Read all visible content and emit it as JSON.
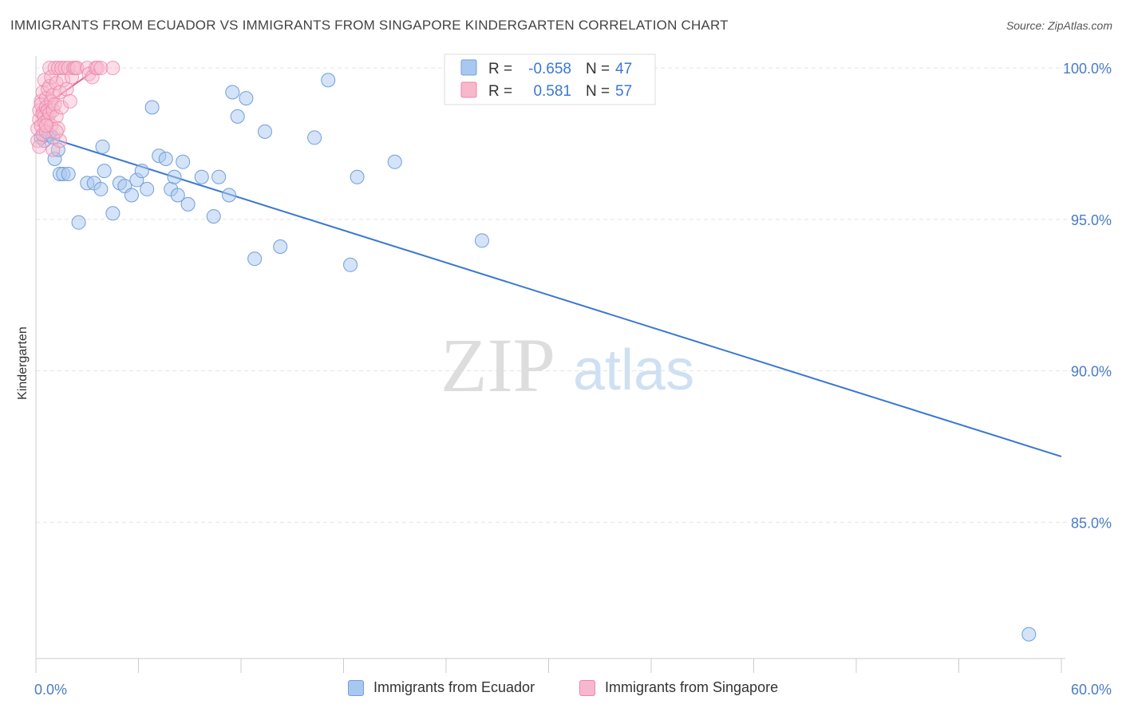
{
  "title": "IMMIGRANTS FROM ECUADOR VS IMMIGRANTS FROM SINGAPORE KINDERGARTEN CORRELATION CHART",
  "source": "Source: ZipAtlas.com",
  "watermark": {
    "zip": "ZIP",
    "atlas": "atlas"
  },
  "colors": {
    "blue_fill": "#a9c8ef",
    "blue_stroke": "#6f9fdc",
    "blue_line": "#3a78d0",
    "pink_fill": "#f7b8cc",
    "pink_stroke": "#ee85a8",
    "pink_line": "#e8638f",
    "tick_color": "#4a7cc7",
    "grid": "#e3e3e3"
  },
  "legend_box": {
    "rows": [
      {
        "r_label": "R =",
        "r_value": "-0.658",
        "n_label": "N =",
        "n_value": "47"
      },
      {
        "r_label": "R =",
        "r_value": "0.581",
        "n_label": "N =",
        "n_value": "57"
      }
    ]
  },
  "chart_data": {
    "type": "scatter",
    "title": "IMMIGRANTS FROM ECUADOR VS IMMIGRANTS FROM SINGAPORE KINDERGARTEN CORRELATION CHART",
    "xlabel": "",
    "ylabel": "Kindergarten",
    "x_tick_labels": [
      "0.0%",
      "60.0%"
    ],
    "y_tick_labels": [
      "100.0%",
      "95.0%",
      "90.0%",
      "85.0%"
    ],
    "y_ticks": [
      100.0,
      95.0,
      90.0,
      85.0
    ],
    "xlim": [
      0,
      60
    ],
    "ylim": [
      80.5,
      100.4
    ],
    "grid": true,
    "legend_placement": "bottom",
    "series": [
      {
        "name": "Immigrants from Ecuador",
        "color": "#a9c8ef",
        "trend": {
          "x": [
            0.0,
            60.0
          ],
          "y": [
            97.84,
            87.17
          ]
        },
        "points": [
          [
            0.5,
            97.6
          ],
          [
            1.1,
            97.0
          ],
          [
            1.3,
            97.3
          ],
          [
            1.4,
            96.5
          ],
          [
            1.6,
            96.5
          ],
          [
            1.9,
            96.5
          ],
          [
            2.5,
            94.9
          ],
          [
            3.0,
            96.2
          ],
          [
            3.4,
            96.2
          ],
          [
            3.8,
            96.0
          ],
          [
            3.9,
            97.4
          ],
          [
            4.0,
            96.6
          ],
          [
            4.5,
            95.2
          ],
          [
            4.9,
            96.2
          ],
          [
            5.2,
            96.1
          ],
          [
            5.6,
            95.8
          ],
          [
            5.9,
            96.3
          ],
          [
            6.2,
            96.6
          ],
          [
            6.5,
            96.0
          ],
          [
            6.8,
            98.7
          ],
          [
            7.2,
            97.1
          ],
          [
            7.6,
            97.0
          ],
          [
            7.9,
            96.0
          ],
          [
            8.1,
            96.4
          ],
          [
            8.3,
            95.8
          ],
          [
            8.6,
            96.9
          ],
          [
            8.9,
            95.5
          ],
          [
            9.7,
            96.4
          ],
          [
            10.4,
            95.1
          ],
          [
            10.7,
            96.4
          ],
          [
            11.3,
            95.8
          ],
          [
            11.5,
            99.2
          ],
          [
            11.8,
            98.4
          ],
          [
            12.3,
            99.0
          ],
          [
            12.8,
            93.7
          ],
          [
            13.4,
            97.9
          ],
          [
            14.3,
            94.1
          ],
          [
            16.3,
            97.7
          ],
          [
            17.1,
            99.6
          ],
          [
            18.4,
            93.5
          ],
          [
            18.8,
            96.4
          ],
          [
            21.0,
            96.9
          ],
          [
            26.1,
            94.3
          ],
          [
            58.1,
            81.3
          ],
          [
            0.3,
            97.7
          ],
          [
            0.8,
            97.8
          ],
          [
            1.0,
            97.7
          ]
        ]
      },
      {
        "name": "Immigrants from Singapore",
        "color": "#f7b8cc",
        "trend": {
          "x": [
            0.0,
            3.5
          ],
          "y": [
            98.55,
            99.95
          ]
        },
        "points": [
          [
            0.1,
            97.6
          ],
          [
            0.1,
            98.0
          ],
          [
            0.2,
            98.3
          ],
          [
            0.2,
            98.6
          ],
          [
            0.2,
            97.4
          ],
          [
            0.3,
            98.9
          ],
          [
            0.3,
            98.1
          ],
          [
            0.3,
            98.8
          ],
          [
            0.4,
            99.2
          ],
          [
            0.4,
            98.5
          ],
          [
            0.4,
            97.8
          ],
          [
            0.5,
            99.6
          ],
          [
            0.5,
            98.4
          ],
          [
            0.5,
            98.2
          ],
          [
            0.6,
            99.0
          ],
          [
            0.6,
            98.7
          ],
          [
            0.6,
            97.9
          ],
          [
            0.7,
            99.3
          ],
          [
            0.7,
            98.6
          ],
          [
            0.7,
            98.3
          ],
          [
            0.8,
            100.0
          ],
          [
            0.8,
            99.4
          ],
          [
            0.8,
            98.5
          ],
          [
            0.9,
            99.7
          ],
          [
            0.9,
            98.9
          ],
          [
            0.9,
            98.1
          ],
          [
            1.0,
            99.1
          ],
          [
            1.0,
            98.6
          ],
          [
            1.0,
            97.3
          ],
          [
            1.1,
            100.0
          ],
          [
            1.1,
            98.8
          ],
          [
            1.2,
            99.5
          ],
          [
            1.2,
            98.4
          ],
          [
            1.3,
            100.0
          ],
          [
            1.3,
            98.0
          ],
          [
            1.4,
            99.2
          ],
          [
            1.4,
            97.6
          ],
          [
            1.5,
            100.0
          ],
          [
            1.5,
            98.7
          ],
          [
            1.6,
            99.6
          ],
          [
            1.7,
            100.0
          ],
          [
            1.8,
            99.3
          ],
          [
            1.9,
            100.0
          ],
          [
            2.0,
            98.9
          ],
          [
            2.1,
            99.7
          ],
          [
            2.2,
            100.0
          ],
          [
            2.3,
            100.0
          ],
          [
            2.4,
            100.0
          ],
          [
            3.0,
            100.0
          ],
          [
            3.1,
            99.8
          ],
          [
            3.3,
            99.7
          ],
          [
            3.5,
            100.0
          ],
          [
            3.6,
            100.0
          ],
          [
            3.8,
            100.0
          ],
          [
            4.5,
            100.0
          ],
          [
            1.2,
            97.9
          ],
          [
            0.6,
            98.1
          ]
        ]
      }
    ]
  }
}
